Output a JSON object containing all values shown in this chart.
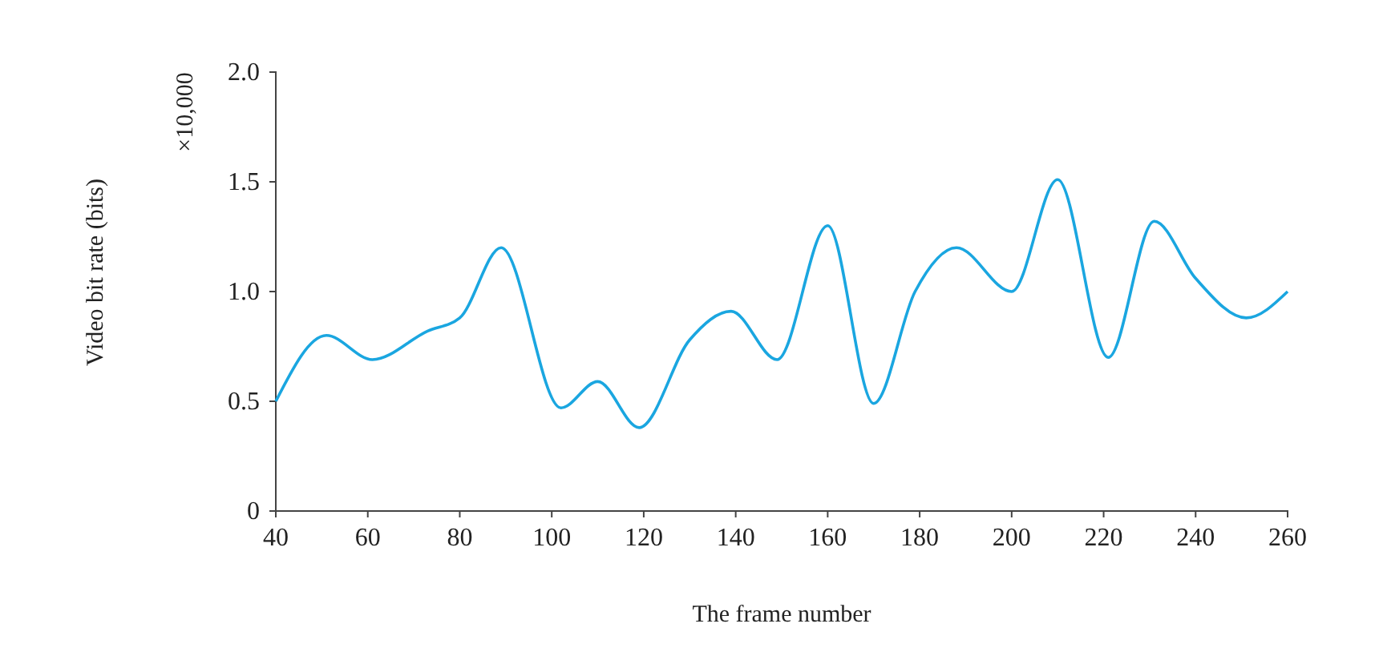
{
  "chart_data": {
    "type": "line",
    "xlabel": "The frame number",
    "ylabel": "Video bit rate (bits)",
    "annotations": [
      "×10,000"
    ],
    "x": [
      40,
      51,
      61,
      73,
      80,
      89,
      102,
      110,
      119,
      130,
      139,
      149,
      160,
      170,
      179,
      188,
      200,
      210,
      221,
      231,
      240,
      251,
      260
    ],
    "series": [
      {
        "color": "#1aa6e0",
        "values": [
          0.5,
          0.8,
          0.69,
          0.82,
          0.88,
          1.2,
          0.47,
          0.59,
          0.38,
          0.78,
          0.91,
          0.69,
          1.3,
          0.49,
          1.0,
          1.2,
          1.0,
          1.51,
          0.7,
          1.32,
          1.06,
          0.88,
          1.0
        ]
      }
    ],
    "xlim": [
      40,
      260
    ],
    "xticks": [
      40,
      60,
      80,
      100,
      120,
      140,
      160,
      180,
      200,
      220,
      240,
      260
    ],
    "ylim": [
      0,
      2
    ],
    "yticks": [
      0,
      {
        "value": 0.5,
        "label": "0.5"
      },
      {
        "value": 1,
        "label": "1.0"
      },
      {
        "value": 1.5,
        "label": "1.5"
      },
      {
        "value": 2,
        "label": "2.0"
      }
    ],
    "grid": false,
    "marker": "none",
    "line_style": "solid"
  }
}
